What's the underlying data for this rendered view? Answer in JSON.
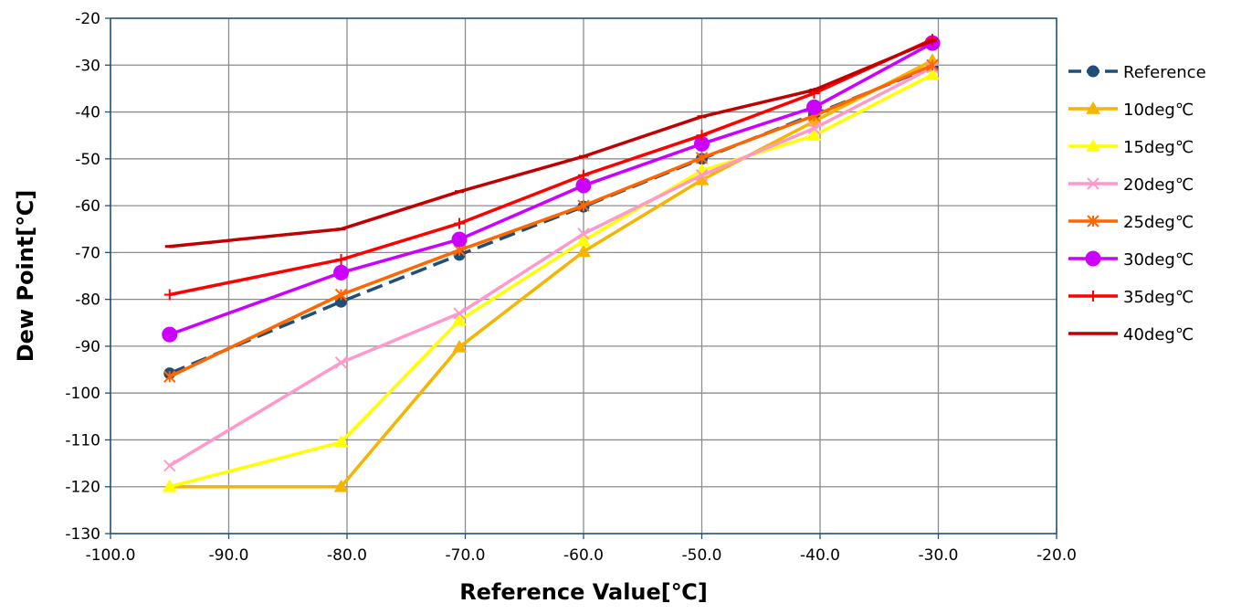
{
  "chart_data": {
    "type": "line",
    "title": "",
    "xlabel": "Reference Value[℃]",
    "ylabel": "Dew Point[℃]",
    "xlim": [
      -100,
      -20
    ],
    "ylim": [
      -130,
      -20
    ],
    "x_ticks": [
      -100,
      -90,
      -80,
      -70,
      -60,
      -50,
      -40,
      -30,
      -20
    ],
    "x_tick_labels": [
      "-100.0",
      "-90.0",
      "-80.0",
      "-70.0",
      "-60.0",
      "-50.0",
      "-40.0",
      "-30.0",
      "-20.0"
    ],
    "y_ticks": [
      -20,
      -30,
      -40,
      -50,
      -60,
      -70,
      -80,
      -90,
      -100,
      -110,
      -120,
      -130
    ],
    "y_tick_labels": [
      "-20",
      "-30",
      "-40",
      "-50",
      "-60",
      "-70",
      "-80",
      "-90",
      "-100",
      "-110",
      "-120",
      "-130"
    ],
    "grid": true,
    "legend_position": "right",
    "x": [
      -95,
      -80.5,
      -70.5,
      -60,
      -50,
      -40.5,
      -30.5
    ],
    "series": [
      {
        "name": "Reference",
        "color": "#1f4e79",
        "marker": "circle",
        "dash": "dashed",
        "values": [
          -95.8,
          -80.5,
          -70.5,
          -60.2,
          -50.0,
          -40.5,
          -30.3
        ]
      },
      {
        "name": "10deg℃",
        "color": "#f5b400",
        "marker": "triangle",
        "dash": "solid",
        "values": [
          -120,
          -120,
          -90.2,
          -69.8,
          -54.5,
          -42.0,
          -29.0
        ]
      },
      {
        "name": "15deg℃",
        "color": "#ffff00",
        "marker": "triangle",
        "dash": "solid",
        "values": [
          -120,
          -110.5,
          -84.5,
          -67.5,
          -52.5,
          -45.0,
          -32.0
        ]
      },
      {
        "name": "20deg℃",
        "color": "#ff99cc",
        "marker": "x",
        "dash": "solid",
        "values": [
          -115.5,
          -93.5,
          -83.0,
          -66.0,
          -53.5,
          -43.5,
          -30.5
        ]
      },
      {
        "name": "25deg℃",
        "color": "#ff6600",
        "marker": "asterisk",
        "dash": "solid",
        "values": [
          -96.5,
          -79.0,
          -69.5,
          -60.0,
          -49.8,
          -40.8,
          -30.0
        ]
      },
      {
        "name": "30deg℃",
        "color": "#cc00ff",
        "marker": "circle",
        "dash": "solid",
        "values": [
          -87.5,
          -74.3,
          -67.2,
          -55.7,
          -46.8,
          -39.0,
          -25.3
        ]
      },
      {
        "name": "35deg℃",
        "color": "#ff0000",
        "marker": "plus",
        "dash": "solid",
        "values": [
          -79.0,
          -71.5,
          -63.8,
          -53.5,
          -45.0,
          -36.0,
          -24.5
        ]
      },
      {
        "name": "40deg℃",
        "color": "#c00000",
        "marker": "dash",
        "dash": "solid",
        "values": [
          -68.7,
          -65.0,
          -57.0,
          -49.5,
          -41.0,
          -35.3,
          -24.8
        ]
      }
    ]
  }
}
